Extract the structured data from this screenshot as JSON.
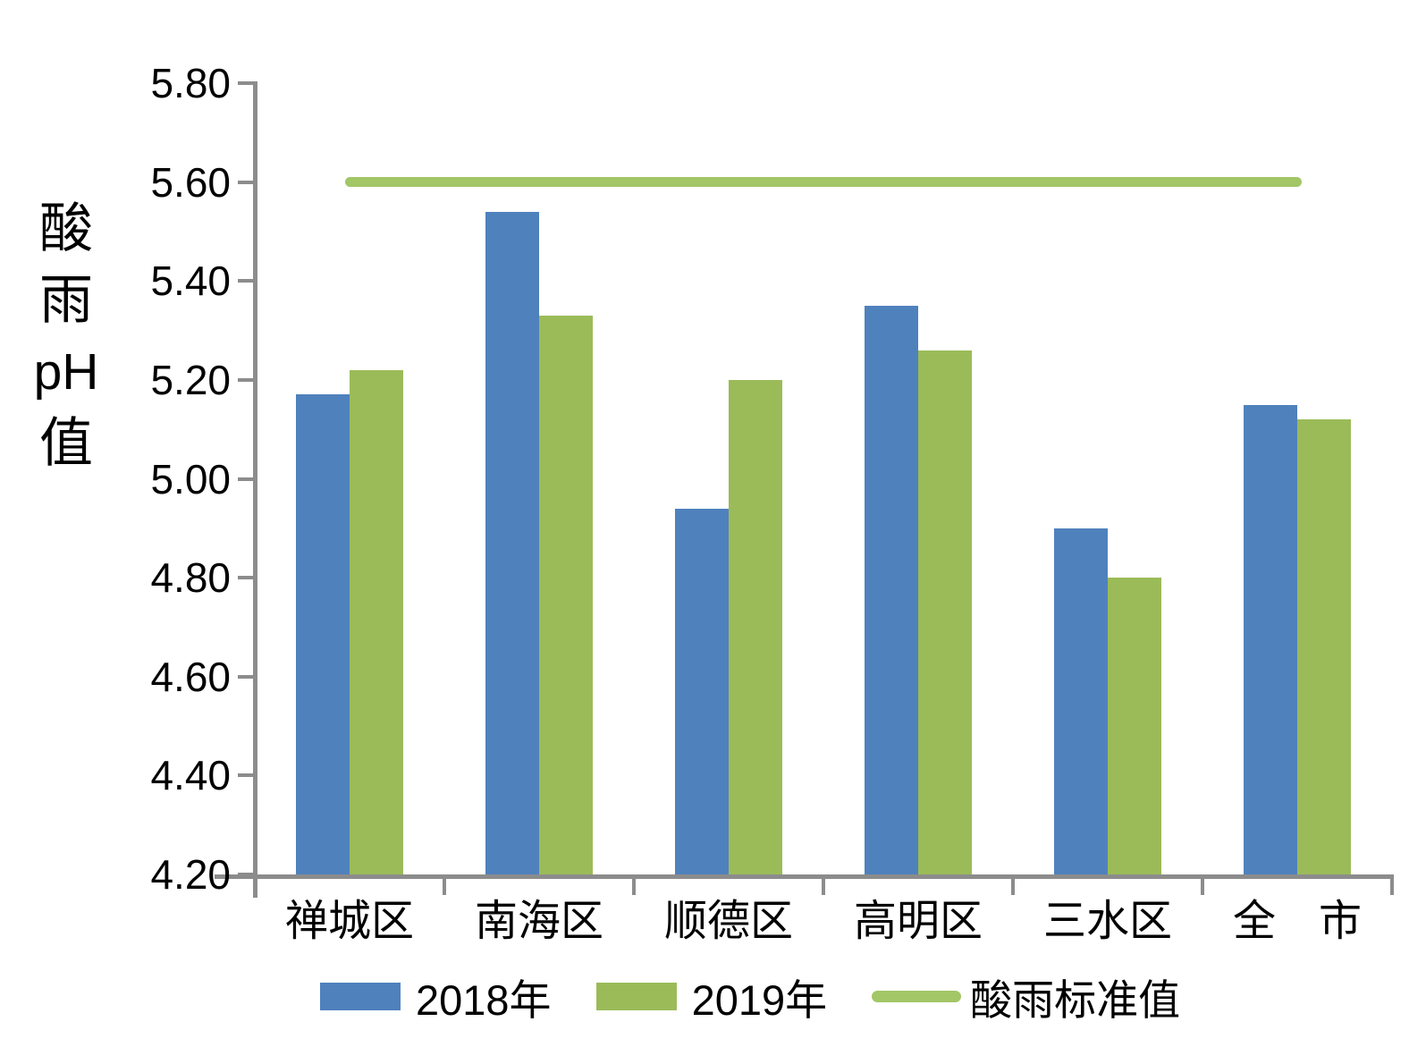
{
  "y_axis": {
    "title_lines": [
      "酸",
      "雨",
      "pH",
      "值"
    ]
  },
  "chart_data": {
    "type": "bar",
    "title": "",
    "ylabel": "酸雨pH值",
    "xlabel": "",
    "categories": [
      "禅城区",
      "南海区",
      "顺德区",
      "高明区",
      "三水区",
      "全　市"
    ],
    "series": [
      {
        "name": "2018年",
        "color": "#4F81BD",
        "values": [
          5.17,
          5.54,
          4.94,
          5.35,
          4.9,
          5.15
        ]
      },
      {
        "name": "2019年",
        "color": "#9BBB59",
        "values": [
          5.22,
          5.33,
          5.2,
          5.26,
          4.8,
          5.12
        ]
      }
    ],
    "reference_line": {
      "name": "酸雨标准值",
      "value": 5.6,
      "color": "#A3C666"
    },
    "y_ticks": [
      "5.80",
      "5.60",
      "5.40",
      "5.20",
      "5.00",
      "4.80",
      "4.60",
      "4.40",
      "4.20"
    ],
    "ylim": [
      4.2,
      5.8
    ],
    "grid": false,
    "legend_position": "bottom"
  }
}
